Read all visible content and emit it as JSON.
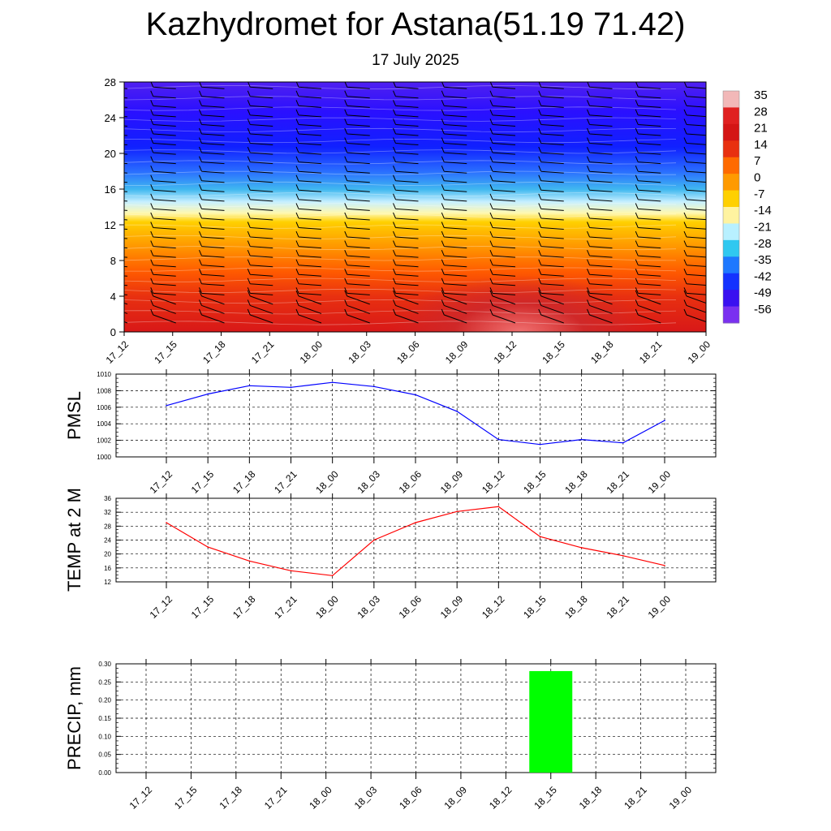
{
  "title": "Kazhydromet for Astana(51.19 71.42)",
  "subtitle": "17 July 2025",
  "time_labels": [
    "17_12",
    "17_15",
    "17_18",
    "17_21",
    "18_00",
    "18_03",
    "18_06",
    "18_09",
    "18_12",
    "18_15",
    "18_18",
    "18_21",
    "19_00"
  ],
  "chart_data": [
    {
      "type": "heatmap",
      "title": "",
      "ylabel": "",
      "ylim": [
        0,
        28
      ],
      "yticks": [
        0,
        4,
        8,
        12,
        16,
        20,
        24,
        28
      ],
      "x": [
        "17_12",
        "17_15",
        "17_18",
        "17_21",
        "18_00",
        "18_03",
        "18_06",
        "18_09",
        "18_12",
        "18_15",
        "18_18",
        "18_21",
        "19_00"
      ],
      "colorbar_labels": [
        "35",
        "28",
        "21",
        "14",
        "7",
        "0",
        "-7",
        "-14",
        "-21",
        "-28",
        "-35",
        "-42",
        "-49",
        "-56"
      ],
      "colorbar_colors": [
        "#f2b8b8",
        "#e02020",
        "#d41515",
        "#e83010",
        "#ff6a00",
        "#ff9a00",
        "#ffd000",
        "#fff3a0",
        "#b8f0ff",
        "#30c8f0",
        "#1e78ff",
        "#1432ff",
        "#3a10f0",
        "#7a30f0"
      ],
      "wind_barbs": true
    },
    {
      "type": "line",
      "title": "",
      "ylabel": "PMSL",
      "ylim": [
        1000,
        1010
      ],
      "yticks": [
        1000,
        1002,
        1004,
        1006,
        1008,
        1010
      ],
      "x": [
        "17_12",
        "17_15",
        "17_18",
        "17_21",
        "18_00",
        "18_03",
        "18_06",
        "18_09",
        "18_12",
        "18_15",
        "18_18",
        "18_21",
        "19_00"
      ],
      "values": [
        1006.2,
        1007.6,
        1008.6,
        1008.4,
        1009.0,
        1008.5,
        1007.5,
        1005.5,
        1002.1,
        1001.5,
        1002.1,
        1001.7,
        1004.4
      ],
      "color": "#0000ff",
      "grid": true
    },
    {
      "type": "line",
      "title": "",
      "ylabel": "TEMP at 2 M",
      "ylim": [
        12,
        36
      ],
      "yticks": [
        12,
        16,
        20,
        24,
        28,
        32,
        36
      ],
      "x": [
        "17_12",
        "17_15",
        "17_18",
        "17_21",
        "18_00",
        "18_03",
        "18_06",
        "18_09",
        "18_12",
        "18_15",
        "18_18",
        "18_21",
        "19_00"
      ],
      "values": [
        29.0,
        22.0,
        18.0,
        15.2,
        13.8,
        24.0,
        29.0,
        32.2,
        33.6,
        25.0,
        21.8,
        19.5,
        16.7
      ],
      "color": "#ff0000",
      "grid": true
    },
    {
      "type": "bar",
      "title": "",
      "ylabel": "PRECIP, mm",
      "ylim": [
        0,
        0.3
      ],
      "yticks": [
        "0.00",
        "0.05",
        "0.10",
        "0.15",
        "0.20",
        "0.25",
        "0.30"
      ],
      "categories": [
        "17_12",
        "17_15",
        "17_18",
        "17_21",
        "18_00",
        "18_03",
        "18_06",
        "18_09",
        "18_12",
        "18_15",
        "18_18",
        "18_21",
        "19_00"
      ],
      "values": [
        0,
        0,
        0,
        0,
        0,
        0,
        0,
        0,
        0,
        0.28,
        0,
        0,
        0
      ],
      "color": "#00ff00",
      "grid": true
    }
  ]
}
